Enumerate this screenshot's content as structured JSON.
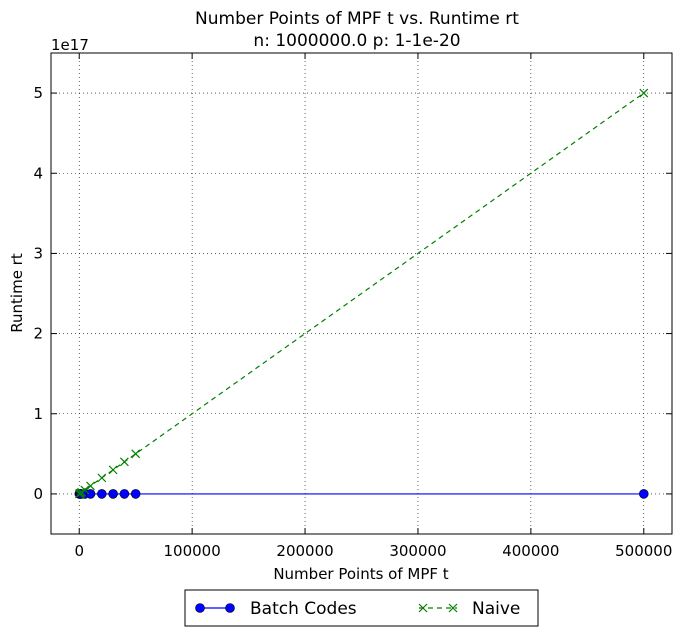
{
  "chart_data": {
    "type": "line",
    "title": "Number Points of MPF t  vs. Runtime rt",
    "subtitle": "n: 1000000.0 p: 1-1e-20",
    "xlabel": "Number Points of MPF t",
    "ylabel": "Runtime rt",
    "y_offset_label": "1e17",
    "y_scale_factor": 1e+17,
    "xlim": [
      -25000,
      525000
    ],
    "ylim": [
      -0.5,
      5.5
    ],
    "xticks": [
      0,
      100000,
      200000,
      300000,
      400000,
      500000
    ],
    "xtick_labels": [
      "0",
      "100000",
      "200000",
      "300000",
      "400000",
      "500000"
    ],
    "yticks": [
      0,
      1,
      2,
      3,
      4,
      5
    ],
    "ytick_labels": [
      "0",
      "1",
      "2",
      "3",
      "4",
      "5"
    ],
    "grid": true,
    "legend_position": "below-center",
    "series": [
      {
        "name": "Batch Codes",
        "color": "#0000ff",
        "linestyle": "solid",
        "marker": "circle",
        "x": [
          100,
          500,
          1000,
          2000,
          5000,
          10000,
          20000,
          30000,
          40000,
          50000,
          500000
        ],
        "y": [
          0,
          0,
          0,
          0,
          0,
          0,
          0,
          0,
          0,
          0,
          0
        ]
      },
      {
        "name": "Naive",
        "color": "#008000",
        "linestyle": "dashed",
        "marker": "x",
        "x": [
          100,
          500,
          1000,
          2000,
          5000,
          10000,
          20000,
          30000,
          40000,
          50000,
          500000
        ],
        "y": [
          0.001,
          0.005,
          0.01,
          0.02,
          0.05,
          0.1,
          0.2,
          0.3,
          0.4,
          0.5,
          5.0
        ]
      }
    ]
  }
}
